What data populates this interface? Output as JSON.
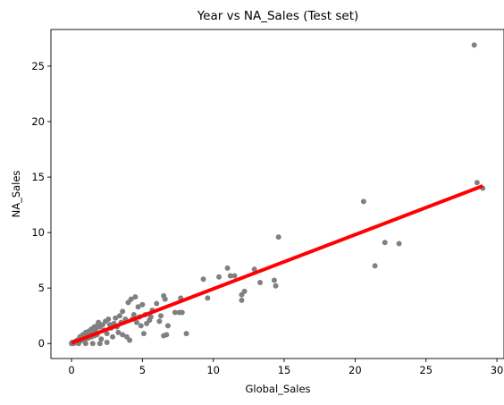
{
  "chart_data": {
    "type": "scatter",
    "title": "Year vs NA_Sales (Test set)",
    "xlabel": "Global_Sales",
    "ylabel": "NA_Sales",
    "xlim": [
      -1.45,
      30.5
    ],
    "ylim": [
      -1.35,
      28.3
    ],
    "xticks": [
      0,
      5,
      10,
      15,
      20,
      25,
      30
    ],
    "yticks": [
      0,
      5,
      10,
      15,
      20,
      25
    ],
    "grid": false,
    "colors": {
      "points": "#808080",
      "fit_line": "#ff0000"
    },
    "series": [
      {
        "kind": "scatter",
        "points": [
          [
            28.4,
            26.9
          ],
          [
            28.6,
            14.5
          ],
          [
            29.0,
            14.0
          ],
          [
            20.6,
            12.8
          ],
          [
            22.1,
            9.1
          ],
          [
            23.1,
            9.0
          ],
          [
            21.4,
            7.0
          ],
          [
            14.6,
            9.6
          ],
          [
            14.3,
            5.7
          ],
          [
            14.4,
            5.2
          ],
          [
            13.3,
            5.5
          ],
          [
            12.9,
            6.7
          ],
          [
            11.0,
            6.8
          ],
          [
            11.5,
            6.1
          ],
          [
            11.2,
            6.1
          ],
          [
            10.4,
            6.0
          ],
          [
            12.0,
            4.4
          ],
          [
            12.2,
            4.7
          ],
          [
            12.0,
            3.9
          ],
          [
            9.3,
            5.8
          ],
          [
            9.6,
            4.1
          ],
          [
            8.1,
            0.9
          ],
          [
            7.7,
            4.1
          ],
          [
            7.8,
            2.8
          ],
          [
            7.6,
            2.8
          ],
          [
            7.3,
            2.8
          ],
          [
            6.6,
            4.0
          ],
          [
            6.5,
            4.3
          ],
          [
            6.8,
            1.6
          ],
          [
            6.7,
            0.8
          ],
          [
            6.5,
            0.7
          ],
          [
            6.0,
            3.6
          ],
          [
            5.7,
            3.0
          ],
          [
            6.3,
            2.5
          ],
          [
            6.2,
            2.0
          ],
          [
            5.6,
            2.4
          ],
          [
            4.5,
            4.2
          ],
          [
            4.2,
            4.0
          ],
          [
            4.0,
            3.7
          ],
          [
            4.7,
            3.3
          ],
          [
            5.0,
            3.5
          ],
          [
            4.9,
            1.6
          ],
          [
            5.1,
            0.9
          ],
          [
            5.5,
            2.1
          ],
          [
            5.3,
            1.8
          ],
          [
            4.4,
            2.6
          ],
          [
            4.1,
            0.3
          ],
          [
            3.9,
            0.6
          ],
          [
            3.6,
            2.9
          ],
          [
            3.4,
            2.5
          ],
          [
            3.8,
            2.2
          ],
          [
            3.1,
            2.3
          ],
          [
            3.0,
            1.8
          ],
          [
            2.8,
            1.4
          ],
          [
            3.3,
            1.0
          ],
          [
            3.6,
            0.8
          ],
          [
            2.6,
            2.2
          ],
          [
            2.4,
            2.0
          ],
          [
            2.2,
            1.7
          ],
          [
            2.0,
            1.5
          ],
          [
            2.5,
            0.9
          ],
          [
            2.9,
            0.6
          ],
          [
            2.1,
            0.4
          ],
          [
            1.9,
            1.9
          ],
          [
            1.7,
            1.3
          ],
          [
            1.5,
            1.1
          ],
          [
            1.3,
            1.0
          ],
          [
            1.1,
            0.8
          ],
          [
            0.9,
            0.7
          ],
          [
            0.7,
            0.5
          ],
          [
            0.5,
            0.35
          ],
          [
            0.4,
            0.3
          ],
          [
            0.3,
            0.2
          ],
          [
            0.2,
            0.15
          ],
          [
            0.1,
            0.05
          ],
          [
            0.0,
            0.0
          ],
          [
            0.05,
            0.1
          ],
          [
            0.15,
            0.0
          ],
          [
            0.35,
            0.1
          ],
          [
            0.6,
            0.2
          ],
          [
            0.8,
            0.3
          ],
          [
            1.0,
            0.4
          ],
          [
            1.2,
            0.5
          ],
          [
            1.4,
            0.6
          ],
          [
            1.6,
            0.7
          ],
          [
            1.8,
            0.8
          ],
          [
            0.6,
            0.6
          ],
          [
            0.8,
            0.8
          ],
          [
            1.0,
            1.0
          ],
          [
            1.2,
            1.1
          ],
          [
            1.4,
            1.3
          ],
          [
            1.6,
            1.5
          ],
          [
            1.8,
            1.6
          ],
          [
            2.3,
            1.2
          ],
          [
            2.7,
            1.7
          ],
          [
            3.2,
            1.5
          ],
          [
            1.5,
            0.0
          ],
          [
            2.0,
            0.0
          ],
          [
            2.5,
            0.1
          ],
          [
            1.0,
            0.0
          ],
          [
            0.5,
            0.0
          ],
          [
            3.5,
            1.9
          ],
          [
            4.3,
            2.2
          ],
          [
            4.6,
            1.9
          ],
          [
            4.8,
            2.4
          ],
          [
            5.2,
            2.6
          ]
        ]
      },
      {
        "kind": "line",
        "points": [
          [
            0.0,
            0.05
          ],
          [
            29.0,
            14.2
          ]
        ]
      }
    ]
  }
}
